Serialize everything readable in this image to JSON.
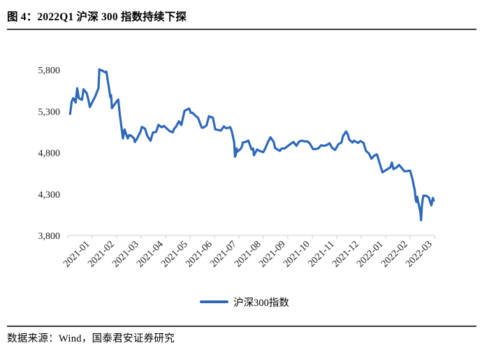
{
  "figure": {
    "title": "图 4：2022Q1 沪深 300 指数持续下探",
    "source": "数据来源：Wind，国泰君安证券研究"
  },
  "legend": {
    "label": "沪深300指数"
  },
  "colors": {
    "line": "#2d69b9",
    "axis": "#d9d9d9",
    "tick_text": "#1a1a1a",
    "rule": "#3a3a3a"
  },
  "chart_data": {
    "type": "line",
    "title": "2022Q1 沪深 300 指数持续下探",
    "xlabel": "",
    "ylabel": "",
    "grid": false,
    "legend_position": "bottom",
    "ylim": [
      3800,
      5800
    ],
    "y_ticks": [
      3800,
      4300,
      4800,
      5300,
      5800
    ],
    "y_tick_labels": [
      "3,800",
      "4,300",
      "4,800",
      "5,300",
      "5,800"
    ],
    "x_tick_labels": [
      "2021-01",
      "2021-02",
      "2021-03",
      "2021-04",
      "2021-05",
      "2021-06",
      "2021-07",
      "2021-08",
      "2021-09",
      "2021-10",
      "2021-11",
      "2021-12",
      "2022-01",
      "2022-02",
      "2022-03"
    ],
    "series": [
      {
        "name": "沪深300指数",
        "points": [
          [
            "2021-01-04",
            5268
          ],
          [
            "2021-01-06",
            5418
          ],
          [
            "2021-01-08",
            5458
          ],
          [
            "2021-01-11",
            5406
          ],
          [
            "2021-01-13",
            5578
          ],
          [
            "2021-01-15",
            5458
          ],
          [
            "2021-01-19",
            5437
          ],
          [
            "2021-01-21",
            5565
          ],
          [
            "2021-01-25",
            5519
          ],
          [
            "2021-01-27",
            5443
          ],
          [
            "2021-01-29",
            5351
          ],
          [
            "2021-02-03",
            5446
          ],
          [
            "2021-02-05",
            5483
          ],
          [
            "2021-02-09",
            5581
          ],
          [
            "2021-02-10",
            5807
          ],
          [
            "2021-02-18",
            5769
          ],
          [
            "2021-02-19",
            5779
          ],
          [
            "2021-02-22",
            5597
          ],
          [
            "2021-02-24",
            5468
          ],
          [
            "2021-02-25",
            5493
          ],
          [
            "2021-02-26",
            5337
          ],
          [
            "2021-03-01",
            5419
          ],
          [
            "2021-03-03",
            5441
          ],
          [
            "2021-03-05",
            5262
          ],
          [
            "2021-03-09",
            4971
          ],
          [
            "2021-03-11",
            5080
          ],
          [
            "2021-03-15",
            4971
          ],
          [
            "2021-03-17",
            5013
          ],
          [
            "2021-03-19",
            5007
          ],
          [
            "2021-03-23",
            4973
          ],
          [
            "2021-03-24",
            4928
          ],
          [
            "2021-03-26",
            4955
          ],
          [
            "2021-03-31",
            5048
          ],
          [
            "2021-04-02",
            5111
          ],
          [
            "2021-04-06",
            5089
          ],
          [
            "2021-04-09",
            4999
          ],
          [
            "2021-04-13",
            4944
          ],
          [
            "2021-04-16",
            5043
          ],
          [
            "2021-04-20",
            5051
          ],
          [
            "2021-04-23",
            5136
          ],
          [
            "2021-04-27",
            5106
          ],
          [
            "2021-04-30",
            5123
          ],
          [
            "2021-05-06",
            5062
          ],
          [
            "2021-05-10",
            5045
          ],
          [
            "2021-05-12",
            5091
          ],
          [
            "2021-05-14",
            5110
          ],
          [
            "2021-05-18",
            5180
          ],
          [
            "2021-05-21",
            5134
          ],
          [
            "2021-05-25",
            5304
          ],
          [
            "2021-05-28",
            5321
          ],
          [
            "2021-05-31",
            5332
          ],
          [
            "2021-06-02",
            5280
          ],
          [
            "2021-06-04",
            5282
          ],
          [
            "2021-06-08",
            5245
          ],
          [
            "2021-06-11",
            5224
          ],
          [
            "2021-06-16",
            5101
          ],
          [
            "2021-06-18",
            5102
          ],
          [
            "2021-06-22",
            5129
          ],
          [
            "2021-06-25",
            5240
          ],
          [
            "2021-06-28",
            5229
          ],
          [
            "2021-06-30",
            5224
          ],
          [
            "2021-07-02",
            5081
          ],
          [
            "2021-07-06",
            5073
          ],
          [
            "2021-07-09",
            5066
          ],
          [
            "2021-07-13",
            5117
          ],
          [
            "2021-07-16",
            5094
          ],
          [
            "2021-07-21",
            5108
          ],
          [
            "2021-07-23",
            5058
          ],
          [
            "2021-07-26",
            4926
          ],
          [
            "2021-07-27",
            4751
          ],
          [
            "2021-07-28",
            4771
          ],
          [
            "2021-07-29",
            4851
          ],
          [
            "2021-07-30",
            4811
          ],
          [
            "2021-08-03",
            4844
          ],
          [
            "2021-08-05",
            4877
          ],
          [
            "2021-08-06",
            4922
          ],
          [
            "2021-08-10",
            4932
          ],
          [
            "2021-08-13",
            4946
          ],
          [
            "2021-08-17",
            4838
          ],
          [
            "2021-08-19",
            4850
          ],
          [
            "2021-08-20",
            4769
          ],
          [
            "2021-08-24",
            4838
          ],
          [
            "2021-08-27",
            4821
          ],
          [
            "2021-09-01",
            4806
          ],
          [
            "2021-09-03",
            4843
          ],
          [
            "2021-09-07",
            4932
          ],
          [
            "2021-09-10",
            4986
          ],
          [
            "2021-09-14",
            4930
          ],
          [
            "2021-09-16",
            4855
          ],
          [
            "2021-09-22",
            4821
          ],
          [
            "2021-09-24",
            4849
          ],
          [
            "2021-09-28",
            4851
          ],
          [
            "2021-09-30",
            4866
          ],
          [
            "2021-10-08",
            4929
          ],
          [
            "2021-10-12",
            4883
          ],
          [
            "2021-10-15",
            4932
          ],
          [
            "2021-10-19",
            4946
          ],
          [
            "2021-10-22",
            4936
          ],
          [
            "2021-10-26",
            4936
          ],
          [
            "2021-10-29",
            4909
          ],
          [
            "2021-11-02",
            4844
          ],
          [
            "2021-11-05",
            4843
          ],
          [
            "2021-11-09",
            4852
          ],
          [
            "2021-11-12",
            4889
          ],
          [
            "2021-11-16",
            4883
          ],
          [
            "2021-11-19",
            4890
          ],
          [
            "2021-11-23",
            4913
          ],
          [
            "2021-11-26",
            4860
          ],
          [
            "2021-11-30",
            4832
          ],
          [
            "2021-12-03",
            4901
          ],
          [
            "2021-12-07",
            4922
          ],
          [
            "2021-12-09",
            5000
          ],
          [
            "2021-12-13",
            5056
          ],
          [
            "2021-12-15",
            5020
          ],
          [
            "2021-12-17",
            4955
          ],
          [
            "2021-12-21",
            4922
          ],
          [
            "2021-12-23",
            4944
          ],
          [
            "2021-12-28",
            4917
          ],
          [
            "2021-12-31",
            4940
          ],
          [
            "2022-01-04",
            4918
          ],
          [
            "2022-01-07",
            4822
          ],
          [
            "2022-01-11",
            4788
          ],
          [
            "2022-01-14",
            4727
          ],
          [
            "2022-01-18",
            4767
          ],
          [
            "2022-01-21",
            4779
          ],
          [
            "2022-01-25",
            4654
          ],
          [
            "2022-01-28",
            4563
          ],
          [
            "2022-02-07",
            4623
          ],
          [
            "2022-02-09",
            4680
          ],
          [
            "2022-02-11",
            4601
          ],
          [
            "2022-02-15",
            4622
          ],
          [
            "2022-02-18",
            4652
          ],
          [
            "2022-02-22",
            4608
          ],
          [
            "2022-02-25",
            4573
          ],
          [
            "2022-03-01",
            4583
          ],
          [
            "2022-03-04",
            4483
          ],
          [
            "2022-03-07",
            4341
          ],
          [
            "2022-03-08",
            4249
          ],
          [
            "2022-03-09",
            4204
          ],
          [
            "2022-03-10",
            4268
          ],
          [
            "2022-03-11",
            4216
          ],
          [
            "2022-03-14",
            4086
          ],
          [
            "2022-03-15",
            3984
          ],
          [
            "2022-03-16",
            4155
          ],
          [
            "2022-03-17",
            4236
          ],
          [
            "2022-03-18",
            4281
          ],
          [
            "2022-03-22",
            4278
          ],
          [
            "2022-03-25",
            4255
          ],
          [
            "2022-03-28",
            4163
          ],
          [
            "2022-03-30",
            4253
          ],
          [
            "2022-03-31",
            4222
          ]
        ]
      }
    ]
  }
}
